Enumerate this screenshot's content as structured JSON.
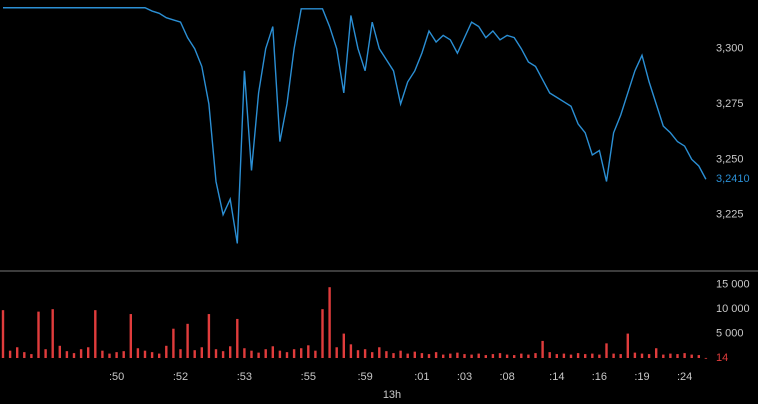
{
  "chart_data": [
    {
      "type": "line",
      "color": "#2b8fd4",
      "ylim": [
        3.2,
        3.322
      ],
      "yticks": [
        {
          "value": 3.3,
          "label": "3,300"
        },
        {
          "value": 3.275,
          "label": "3,275"
        },
        {
          "value": 3.25,
          "label": "3,250"
        },
        {
          "value": 3.225,
          "label": "3,225"
        }
      ],
      "values": [
        3.3185,
        3.3185,
        3.3185,
        3.3185,
        3.3185,
        3.3185,
        3.3185,
        3.3185,
        3.3185,
        3.3185,
        3.3185,
        3.3185,
        3.3185,
        3.3185,
        3.3185,
        3.3185,
        3.3185,
        3.3185,
        3.3185,
        3.3185,
        3.3185,
        3.317,
        3.316,
        3.314,
        3.313,
        3.312,
        3.305,
        3.3,
        3.292,
        3.275,
        3.24,
        3.225,
        3.232,
        3.212,
        3.29,
        3.245,
        3.28,
        3.3,
        3.31,
        3.258,
        3.275,
        3.3,
        3.318,
        3.318,
        3.318,
        3.318,
        3.31,
        3.3,
        3.28,
        3.315,
        3.3,
        3.29,
        3.312,
        3.3,
        3.295,
        3.29,
        3.275,
        3.285,
        3.29,
        3.298,
        3.308,
        3.303,
        3.306,
        3.304,
        3.298,
        3.305,
        3.312,
        3.31,
        3.305,
        3.308,
        3.304,
        3.306,
        3.305,
        3.3,
        3.294,
        3.292,
        3.286,
        3.28,
        3.278,
        3.276,
        3.274,
        3.266,
        3.262,
        3.252,
        3.254,
        3.24,
        3.262,
        3.27,
        3.28,
        3.29,
        3.297,
        3.285,
        3.275,
        3.265,
        3.262,
        3.258,
        3.256,
        3.25,
        3.247,
        3.241
      ],
      "value_labels": [
        null,
        null,
        null,
        null,
        null,
        null,
        null,
        null,
        null,
        null,
        null,
        null,
        null,
        null,
        null,
        null,
        null,
        null,
        null,
        null,
        null,
        null,
        null,
        null,
        null,
        null,
        null,
        null,
        null,
        null,
        null,
        null,
        null,
        null,
        null,
        null,
        null,
        null,
        null,
        null,
        null,
        null,
        null,
        null,
        null,
        null,
        null,
        null,
        null,
        null,
        null,
        null,
        null,
        null,
        null,
        null,
        null,
        null,
        null,
        null,
        null,
        null,
        null,
        null,
        null,
        null,
        null,
        null,
        null,
        null,
        null,
        null,
        null,
        null,
        null,
        null,
        null,
        null,
        null,
        null,
        null,
        null,
        null,
        null,
        null,
        null,
        null,
        null,
        null,
        null,
        null,
        null,
        null,
        null,
        null,
        null,
        null,
        null,
        null,
        "3,2410"
      ]
    },
    {
      "type": "bar",
      "color": "#e03c3c",
      "ylim": [
        0,
        17000
      ],
      "xlabel": "13h",
      "yticks": [
        {
          "value": 15000,
          "label": "15 000"
        },
        {
          "value": 10000,
          "label": "10 000"
        },
        {
          "value": 5000,
          "label": "5 000"
        }
      ],
      "categories": [
        null,
        null,
        null,
        null,
        null,
        null,
        null,
        null,
        null,
        null,
        null,
        null,
        null,
        null,
        null,
        null,
        ":50",
        null,
        null,
        null,
        null,
        null,
        null,
        null,
        null,
        ":52",
        null,
        null,
        null,
        null,
        null,
        null,
        null,
        null,
        ":53",
        null,
        null,
        null,
        null,
        null,
        null,
        null,
        null,
        ":55",
        null,
        null,
        null,
        null,
        null,
        null,
        null,
        ":59",
        null,
        null,
        null,
        null,
        null,
        null,
        null,
        ":01",
        null,
        null,
        null,
        null,
        null,
        ":03",
        null,
        null,
        null,
        null,
        null,
        ":08",
        null,
        null,
        null,
        null,
        null,
        null,
        ":14",
        null,
        null,
        null,
        null,
        null,
        ":16",
        null,
        null,
        null,
        null,
        null,
        ":19",
        null,
        null,
        null,
        null,
        null,
        ":24",
        null,
        null,
        null
      ],
      "values": [
        9800,
        1500,
        2200,
        1200,
        800,
        9500,
        1800,
        10000,
        2500,
        1400,
        1000,
        1800,
        2200,
        9800,
        1500,
        900,
        1200,
        1400,
        9000,
        2000,
        1500,
        1200,
        900,
        2500,
        6000,
        1800,
        7000,
        1600,
        2200,
        9000,
        1800,
        1400,
        2400,
        8000,
        2000,
        1500,
        1100,
        1800,
        2400,
        1500,
        1200,
        1800,
        2000,
        2600,
        1500,
        10000,
        14500,
        2200,
        5000,
        2800,
        1600,
        1800,
        1200,
        2200,
        1400,
        1000,
        1500,
        900,
        1300,
        1000,
        800,
        1200,
        700,
        900,
        1100,
        800,
        700,
        900,
        600,
        800,
        1000,
        700,
        600,
        900,
        700,
        1000,
        3500,
        1200,
        800,
        900,
        700,
        1000,
        800,
        900,
        700,
        3000,
        900,
        800,
        5000,
        1100,
        900,
        800,
        2000,
        700,
        900,
        800,
        1000,
        700,
        600,
        14
      ],
      "value_labels": [
        null,
        null,
        null,
        null,
        null,
        null,
        null,
        null,
        null,
        null,
        null,
        null,
        null,
        null,
        null,
        null,
        null,
        null,
        null,
        null,
        null,
        null,
        null,
        null,
        null,
        null,
        null,
        null,
        null,
        null,
        null,
        null,
        null,
        null,
        null,
        null,
        null,
        null,
        null,
        null,
        null,
        null,
        null,
        null,
        null,
        null,
        null,
        null,
        null,
        null,
        null,
        null,
        null,
        null,
        null,
        null,
        null,
        null,
        null,
        null,
        null,
        null,
        null,
        null,
        null,
        null,
        null,
        null,
        null,
        null,
        null,
        null,
        null,
        null,
        null,
        null,
        null,
        null,
        null,
        null,
        null,
        null,
        null,
        null,
        null,
        null,
        null,
        null,
        null,
        null,
        null,
        null,
        null,
        null,
        null,
        null,
        null,
        null,
        null,
        "14"
      ]
    }
  ]
}
